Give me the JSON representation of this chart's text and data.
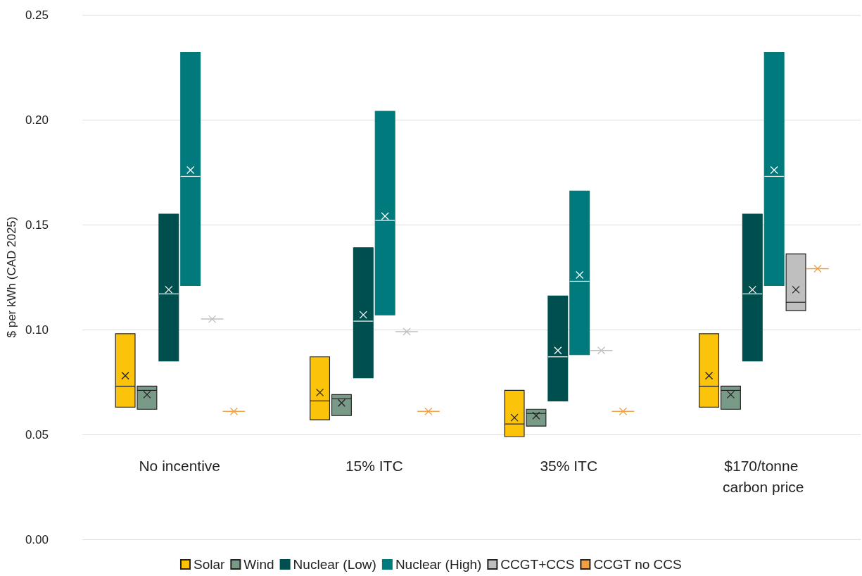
{
  "chart_data": {
    "type": "box",
    "ylabel": "$ per kWh (CAD 2025)",
    "categories": [
      "No incentive",
      "15% ITC",
      "35% ITC",
      "$170/tonne carbon price"
    ],
    "ylim": [
      0,
      0.25
    ],
    "yticks": [
      {
        "value": 0,
        "label": "0.00"
      },
      {
        "value": 0.05,
        "label": "0.05"
      },
      {
        "value": 0.1,
        "label": "0.10"
      },
      {
        "value": 0.15,
        "label": "0.15"
      },
      {
        "value": 0.2,
        "label": "0.20"
      },
      {
        "value": 0.25,
        "label": "0.25"
      }
    ],
    "grid": "y",
    "legend": "bottom",
    "series": [
      {
        "name": "Solar",
        "color": "#fcc30b",
        "boxes": [
          {
            "low": 0.063,
            "q1": 0.063,
            "median": 0.073,
            "q3": 0.098,
            "high": 0.098,
            "mean": 0.078
          },
          {
            "low": 0.057,
            "q1": 0.057,
            "median": 0.066,
            "q3": 0.087,
            "high": 0.087,
            "mean": 0.07
          },
          {
            "low": 0.049,
            "q1": 0.049,
            "median": 0.055,
            "q3": 0.071,
            "high": 0.071,
            "mean": 0.058
          },
          {
            "low": 0.063,
            "q1": 0.063,
            "median": 0.073,
            "q3": 0.098,
            "high": 0.098,
            "mean": 0.078
          }
        ]
      },
      {
        "name": "Wind",
        "color": "#7a9a88",
        "boxes": [
          {
            "low": 0.062,
            "q1": 0.062,
            "median": 0.071,
            "q3": 0.073,
            "high": 0.073,
            "mean": 0.069
          },
          {
            "low": 0.059,
            "q1": 0.059,
            "median": 0.067,
            "q3": 0.069,
            "high": 0.069,
            "mean": 0.065
          },
          {
            "low": 0.054,
            "q1": 0.054,
            "median": 0.06,
            "q3": 0.062,
            "high": 0.062,
            "mean": 0.059
          },
          {
            "low": 0.062,
            "q1": 0.062,
            "median": 0.071,
            "q3": 0.073,
            "high": 0.073,
            "mean": 0.069
          }
        ]
      },
      {
        "name": "Nuclear (Low)",
        "color": "#004f4f",
        "boxes": [
          {
            "low": 0.085,
            "q1": 0.085,
            "median": 0.117,
            "q3": 0.155,
            "high": 0.155,
            "mean": 0.119
          },
          {
            "low": 0.077,
            "q1": 0.077,
            "median": 0.104,
            "q3": 0.139,
            "high": 0.139,
            "mean": 0.107
          },
          {
            "low": 0.066,
            "q1": 0.066,
            "median": 0.087,
            "q3": 0.116,
            "high": 0.116,
            "mean": 0.09
          },
          {
            "low": 0.085,
            "q1": 0.085,
            "median": 0.117,
            "q3": 0.155,
            "high": 0.155,
            "mean": 0.119
          }
        ]
      },
      {
        "name": "Nuclear (High)",
        "color": "#007a7c",
        "boxes": [
          {
            "low": 0.121,
            "q1": 0.121,
            "median": 0.173,
            "q3": 0.232,
            "high": 0.232,
            "mean": 0.176
          },
          {
            "low": 0.107,
            "q1": 0.107,
            "median": 0.152,
            "q3": 0.204,
            "high": 0.204,
            "mean": 0.154
          },
          {
            "low": 0.088,
            "q1": 0.088,
            "median": 0.123,
            "q3": 0.166,
            "high": 0.166,
            "mean": 0.126
          },
          {
            "low": 0.121,
            "q1": 0.121,
            "median": 0.173,
            "q3": 0.232,
            "high": 0.232,
            "mean": 0.176
          }
        ]
      },
      {
        "name": "CCGT+CCS",
        "color": "#bfbfbf",
        "boxes": [
          {
            "low": 0.105,
            "q1": 0.105,
            "median": 0.105,
            "q3": 0.105,
            "high": 0.105,
            "mean": 0.105
          },
          {
            "low": 0.099,
            "q1": 0.099,
            "median": 0.099,
            "q3": 0.099,
            "high": 0.099,
            "mean": 0.099
          },
          {
            "low": 0.09,
            "q1": 0.09,
            "median": 0.09,
            "q3": 0.09,
            "high": 0.09,
            "mean": 0.09
          },
          {
            "low": 0.109,
            "q1": 0.109,
            "median": 0.113,
            "q3": 0.136,
            "high": 0.136,
            "mean": 0.119
          }
        ]
      },
      {
        "name": "CCGT no CCS",
        "color": "#f0a046",
        "boxes": [
          {
            "low": 0.061,
            "q1": 0.061,
            "median": 0.061,
            "q3": 0.061,
            "high": 0.061,
            "mean": 0.061
          },
          {
            "low": 0.061,
            "q1": 0.061,
            "median": 0.061,
            "q3": 0.061,
            "high": 0.061,
            "mean": 0.061
          },
          {
            "low": 0.061,
            "q1": 0.061,
            "median": 0.061,
            "q3": 0.061,
            "high": 0.061,
            "mean": 0.061
          },
          {
            "low": 0.129,
            "q1": 0.129,
            "median": 0.129,
            "q3": 0.129,
            "high": 0.129,
            "mean": 0.129
          }
        ]
      }
    ]
  }
}
